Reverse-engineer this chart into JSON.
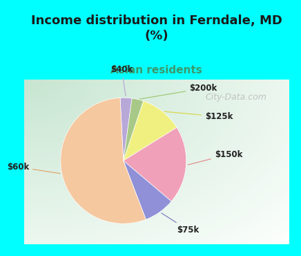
{
  "title": "Income distribution in Ferndale, MD\n(%)",
  "subtitle": "Asian residents",
  "title_color": "#1a1a1a",
  "subtitle_color": "#3a9a6a",
  "background_top": "#00ffff",
  "slices": [
    {
      "label": "$40k",
      "value": 3,
      "color": "#b8a8d8"
    },
    {
      "label": "$200k",
      "value": 3,
      "color": "#a8c888"
    },
    {
      "label": "$125k",
      "value": 11,
      "color": "#f0f080"
    },
    {
      "label": "$150k",
      "value": 20,
      "color": "#f0a0b8"
    },
    {
      "label": "$75k",
      "value": 8,
      "color": "#9090d8"
    },
    {
      "label": "$60k",
      "value": 55,
      "color": "#f5c8a0"
    }
  ],
  "label_colors": {
    "$40k": "#b8a8d8",
    "$200k": "#a8c888",
    "$125k": "#d0d050",
    "$150k": "#e08090",
    "$75k": "#7070b8",
    "$60k": "#e0a070"
  },
  "label_fontsize": 8.5,
  "title_fontsize": 13,
  "subtitle_fontsize": 11,
  "watermark": "City-Data.com",
  "watermark_fontsize": 9,
  "watermark_color": "#bbbbbb"
}
